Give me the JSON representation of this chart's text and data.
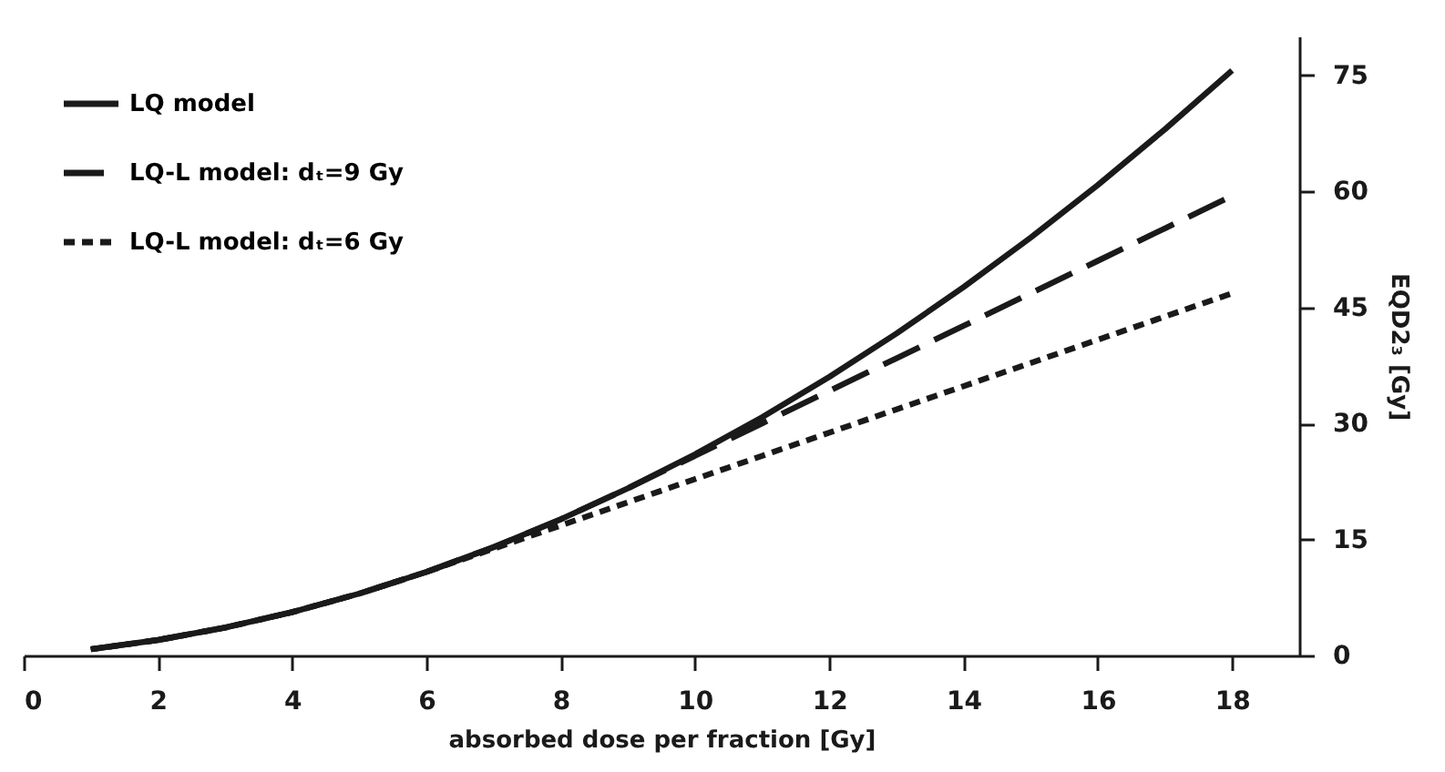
{
  "chart_data": {
    "type": "line",
    "xlabel": "absorbed dose per fraction [Gy]",
    "ylabel": "EQD2₃ [Gy]",
    "x": [
      1,
      2,
      3,
      4,
      5,
      6,
      7,
      8,
      9,
      10,
      11,
      12,
      13,
      14,
      15,
      16,
      17,
      18
    ],
    "xlim": [
      0,
      19
    ],
    "xticks": [
      0,
      2,
      4,
      6,
      8,
      10,
      12,
      14,
      16,
      18
    ],
    "ylim": [
      0,
      80
    ],
    "yticks": [
      0,
      15,
      30,
      45,
      60,
      75
    ],
    "grid": false,
    "legend": "top left",
    "marker": "none",
    "series": [
      {
        "name": "LQ model",
        "color": "#1a1a1a",
        "line_style": "solid",
        "values": [
          0.8,
          2,
          3.6,
          5.6,
          8,
          10.8,
          14,
          17.6,
          21.6,
          26,
          30.8,
          36,
          41.6,
          47.6,
          54,
          60.8,
          68,
          75.6
        ]
      },
      {
        "name": "LQ-L model: dₜ=9 Gy",
        "color": "#1a1a1a",
        "line_style": "dashed",
        "values": [
          0.8,
          2,
          3.6,
          5.6,
          8,
          10.8,
          14,
          17.6,
          21.6,
          25.8,
          30,
          34.2,
          38.4,
          42.6,
          46.8,
          51,
          55.2,
          59.4
        ]
      },
      {
        "name": "LQ-L model: dₜ=6 Gy",
        "color": "#1a1a1a",
        "line_style": "dotted",
        "values": [
          0.8,
          2,
          3.6,
          5.6,
          8,
          10.8,
          13.8,
          16.8,
          19.8,
          22.8,
          25.8,
          28.8,
          31.8,
          34.8,
          37.8,
          40.8,
          43.8,
          46.8
        ]
      }
    ]
  }
}
